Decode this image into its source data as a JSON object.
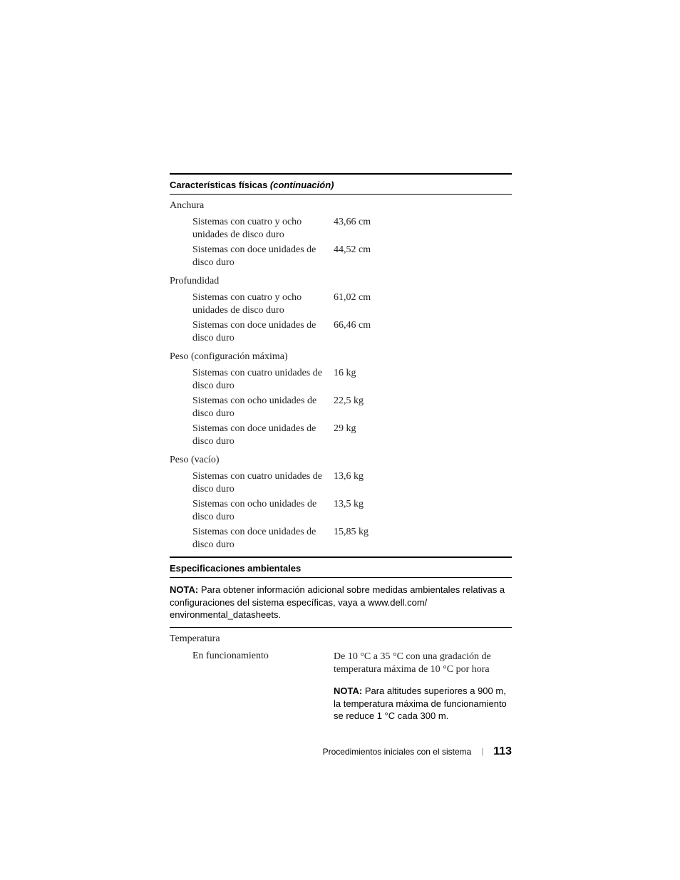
{
  "section1": {
    "title_main": "Características físicas",
    "title_italic": " (continuación)",
    "groups": [
      {
        "heading": "Anchura",
        "rows": [
          {
            "label": "Sistemas con cuatro y ocho unidades de disco duro",
            "value": "43,66 cm"
          },
          {
            "label": "Sistemas con doce unidades de disco duro",
            "value": "44,52 cm"
          }
        ]
      },
      {
        "heading": "Profundidad",
        "rows": [
          {
            "label": "Sistemas con cuatro y ocho unidades de disco duro",
            "value": "61,02 cm"
          },
          {
            "label": "Sistemas con doce unidades de disco duro",
            "value": "66,46 cm"
          }
        ]
      },
      {
        "heading": "Peso (configuración máxima)",
        "rows": [
          {
            "label": "Sistemas con cuatro unidades de disco duro",
            "value": "16 kg"
          },
          {
            "label": "Sistemas con ocho unidades de disco duro",
            "value": "22,5 kg"
          },
          {
            "label": "Sistemas con doce unidades de disco duro",
            "value": "29 kg"
          }
        ]
      },
      {
        "heading": "Peso (vacío)",
        "rows": [
          {
            "label": "Sistemas con cuatro unidades de disco duro",
            "value": "13,6 kg"
          },
          {
            "label": "Sistemas con ocho unidades de disco duro",
            "value": "13,5 kg"
          },
          {
            "label": "Sistemas con doce unidades de disco duro",
            "value": "15,85 kg"
          }
        ]
      }
    ]
  },
  "section2": {
    "title": "Especificaciones ambientales",
    "note_prefix": "NOTA:",
    "note_body": " Para obtener información adicional sobre medidas ambientales relativas a configuraciones del sistema específicas, vaya a ",
    "note_url": "www.dell.com/ environmental_datasheets",
    "note_suffix": ".",
    "temp_heading": "Temperatura",
    "temp_label": "En funcionamiento",
    "temp_value": "De 10 °C a 35 °C con una gradación de temperatura máxima de 10 °C por hora",
    "temp_note_prefix": "NOTA:",
    "temp_note_body": " Para altitudes superiores a 900 m, la temperatura máxima de funcionamiento se reduce 1 °C cada 300 m."
  },
  "footer": {
    "text": "Procedimientos iniciales con el sistema",
    "page": "113"
  }
}
